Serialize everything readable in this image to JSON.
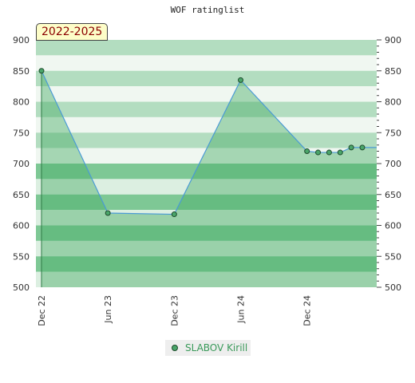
{
  "chart_data": {
    "type": "area",
    "title": "WOF ratinglist",
    "period_label": "2022-2025",
    "ylim": [
      500,
      900
    ],
    "y_ticks": [
      500,
      550,
      600,
      650,
      700,
      750,
      800,
      850,
      900
    ],
    "xlim": [
      "2022-12",
      "2025-06"
    ],
    "x_ticks": [
      {
        "label": "Dec 22",
        "x": "2022-12"
      },
      {
        "label": "Jun 23",
        "x": "2023-06"
      },
      {
        "label": "Dec 23",
        "x": "2023-12"
      },
      {
        "label": "Jun 24",
        "x": "2024-06"
      },
      {
        "label": "Dec 24",
        "x": "2024-12"
      }
    ],
    "series": [
      {
        "name": "SLABOV Kirill",
        "points": [
          {
            "x": "2022-12",
            "y": 850
          },
          {
            "x": "2023-06",
            "y": 620
          },
          {
            "x": "2023-12",
            "y": 618
          },
          {
            "x": "2024-06",
            "y": 835
          },
          {
            "x": "2024-12",
            "y": 720
          },
          {
            "x": "2025-01",
            "y": 718
          },
          {
            "x": "2025-02",
            "y": 718
          },
          {
            "x": "2025-03",
            "y": 718
          },
          {
            "x": "2025-04",
            "y": 726
          },
          {
            "x": "2025-05",
            "y": 726
          }
        ]
      }
    ],
    "legend_position": "bottom-center",
    "colors": {
      "band_light": "#f0f7f1",
      "band_dark": "#b3ddc0",
      "band_light_low": "#dcefe1",
      "band_dark_low": "#7ec895",
      "area_fill": "#4aae68",
      "line": "#4a9ad6",
      "marker": "#4aa56a",
      "marker_edge": "#1c4a2a"
    }
  }
}
